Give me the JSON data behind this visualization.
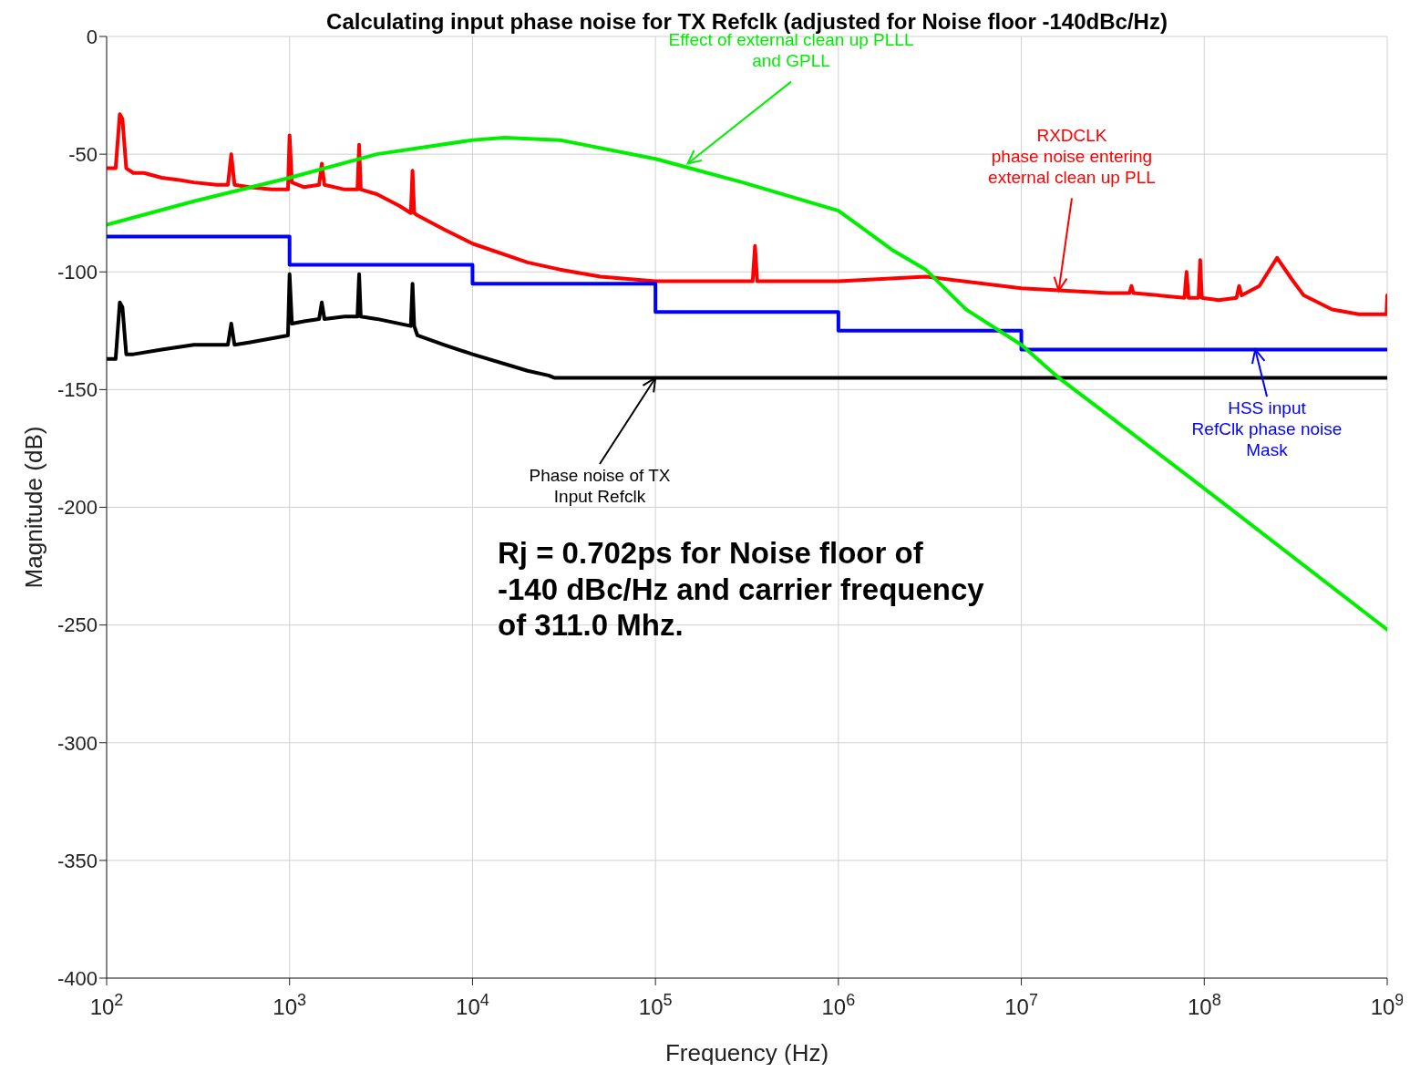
{
  "chart_data": {
    "type": "line",
    "title": "Calculating input phase noise for TX Refclk (adjusted for Noise floor -140dBc/Hz)",
    "xlabel": "Frequency (Hz)",
    "ylabel": "Magnitude (dB)",
    "log": "x",
    "grid": true,
    "legend": false,
    "marker": "none",
    "line_style": "solid",
    "xlim": [
      100,
      1000000000
    ],
    "ylim": [
      -400,
      0
    ],
    "xticks": [
      {
        "value": 100,
        "label": "10$^{2}$"
      },
      {
        "value": 1000,
        "label": "10$^{3}$"
      },
      {
        "value": 10000,
        "label": "10$^{4}$"
      },
      {
        "value": 100000,
        "label": "10$^{5}$"
      },
      {
        "value": 1000000,
        "label": "10$^{6}$"
      },
      {
        "value": 10000000,
        "label": "10$^{7}$"
      },
      {
        "value": 100000000,
        "label": "10$^{8}$"
      },
      {
        "value": 1000000000,
        "label": "10$^{9}$"
      }
    ],
    "yticks": [
      0,
      -50,
      -100,
      -150,
      -200,
      -250,
      -300,
      -350,
      -400
    ],
    "series": [
      {
        "color": "#ff0000",
        "x": [
          100,
          112,
          118,
          122,
          128,
          140,
          160,
          200,
          250,
          300,
          400,
          460,
          480,
          500,
          600,
          800,
          980,
          1000,
          1030,
          1200,
          1450,
          1500,
          1550,
          2000,
          2350,
          2400,
          2450,
          3000,
          4000,
          4600,
          4700,
          4800,
          5000,
          7000,
          10000,
          20000,
          30000,
          50000,
          100000,
          300000,
          340000,
          350000,
          360000,
          1000000,
          3000000,
          10000000,
          30000000,
          39000000,
          40000000,
          41000000,
          78000000,
          80000000,
          82000000,
          93000000,
          95000000,
          97000000,
          120000000,
          150000000,
          155000000,
          160000000,
          200000000,
          250000000,
          300000000,
          350000000,
          500000000,
          700000000,
          990000000,
          1000000000
        ],
        "values": [
          -56,
          -56,
          -33,
          -35,
          -56,
          -58,
          -58,
          -60,
          -61,
          -62,
          -63,
          -63,
          -50,
          -63,
          -64,
          -65,
          -65,
          -42,
          -62,
          -64,
          -63,
          -54,
          -63,
          -65,
          -65,
          -46,
          -65,
          -67,
          -72,
          -75,
          -57,
          -75,
          -76,
          -82,
          -88,
          -96,
          -99,
          -102,
          -104,
          -104,
          -104,
          -89,
          -104,
          -104,
          -102,
          -107,
          -109,
          -109,
          -106,
          -109,
          -111,
          -100,
          -111,
          -111,
          -95,
          -111,
          -112,
          -111,
          -106,
          -110,
          -106,
          -94,
          -103,
          -110,
          -116,
          -118,
          -118,
          -110
        ]
      },
      {
        "color": "#000000",
        "x": [
          100,
          112,
          118,
          122,
          128,
          140,
          200,
          300,
          460,
          480,
          500,
          600,
          980,
          1000,
          1030,
          1200,
          1450,
          1500,
          1550,
          2000,
          2350,
          2400,
          2450,
          3000,
          4600,
          4700,
          4800,
          5000,
          7000,
          10000,
          20000,
          26000,
          28000,
          1000000000
        ],
        "values": [
          -137,
          -137,
          -113,
          -115,
          -135,
          -135,
          -133,
          -131,
          -131,
          -122,
          -131,
          -130,
          -127,
          -101,
          -122,
          -121,
          -120,
          -113,
          -120,
          -119,
          -119,
          -101,
          -119,
          -120,
          -123,
          -105,
          -123,
          -127,
          -131,
          -135,
          -142,
          -144,
          -145,
          -145
        ]
      },
      {
        "type": "step",
        "color": "#0000ff",
        "x": [
          100,
          1000,
          10000,
          100000,
          1000000,
          10000000,
          1000000000
        ],
        "values": [
          -85,
          -97,
          -105,
          -117,
          -125,
          -133,
          -133
        ]
      },
      {
        "color": "#00ee00",
        "x": [
          100,
          300,
          1000,
          3000,
          10000,
          15000,
          30000,
          100000,
          300000,
          1000000,
          2000000,
          3000000,
          5000000,
          10000000,
          16000000,
          30000000,
          100000000,
          1000000000
        ],
        "values": [
          -80,
          -70,
          -60,
          -50,
          -44,
          -43,
          -44,
          -52,
          -62,
          -74,
          -91,
          -99,
          -116,
          -131,
          -145,
          -161,
          -192,
          -252
        ]
      }
    ],
    "annotations": [
      {
        "text": "Effect of external clean up PLLL\nand GPLL",
        "x": 150000,
        "y": -54
      },
      {
        "text": "RXDCLK\nphase noise entering\nexternal clean up PLL",
        "x": 16000000,
        "y": -108
      },
      {
        "text": "HSS input\nRefClk phase noise\nMask",
        "x": 190000000,
        "y": -133
      },
      {
        "text": "Phase noise  of TX\nInput Refclk",
        "x": 100000,
        "y": -145
      },
      "Rj = 0.702ps for Noise floor of\n-140 dBc/Hz and carrier frequency\nof 311.0 Mhz."
    ]
  }
}
